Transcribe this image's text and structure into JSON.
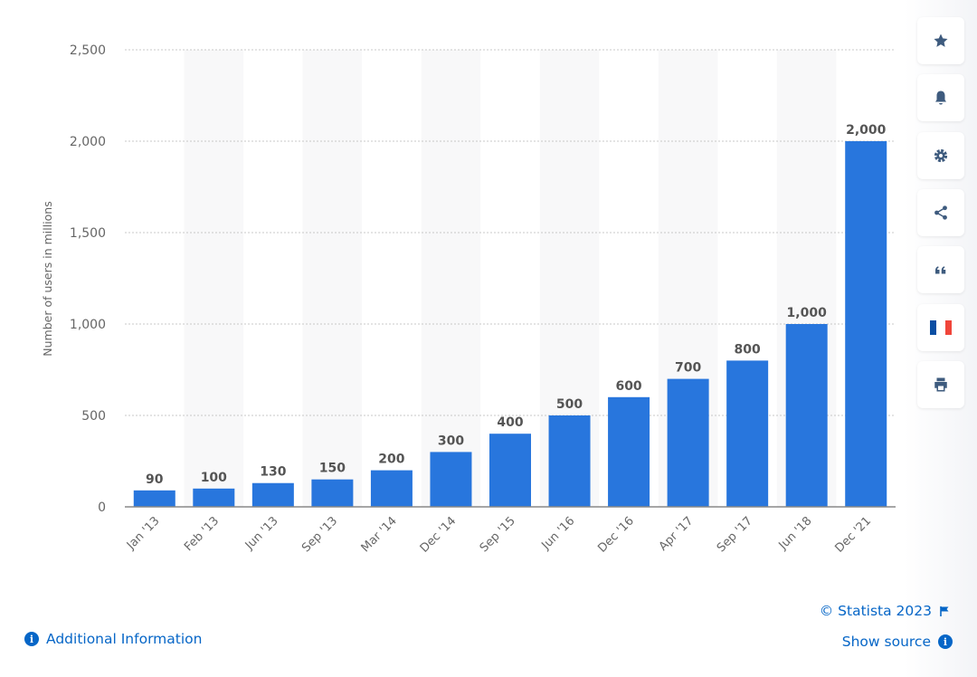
{
  "chart_data": {
    "type": "bar",
    "ylabel": "Number of users in millions",
    "xlabel": "",
    "ylim": [
      0,
      2500
    ],
    "yticks": [
      0,
      500,
      1000,
      1500,
      2000,
      2500
    ],
    "ytick_labels": [
      "0",
      "500",
      "1,000",
      "1,500",
      "2,000",
      "2,500"
    ],
    "grid": true,
    "bar_color": "#2876dd",
    "categories": [
      "Jan '13",
      "Feb '13",
      "Jun '13",
      "Sep '13",
      "Mar '14",
      "Dec '14",
      "Sep '15",
      "Jun '16",
      "Dec '16",
      "Apr '17",
      "Sep '17",
      "Jun '18",
      "Dec '21"
    ],
    "values": [
      90,
      100,
      130,
      150,
      200,
      300,
      400,
      500,
      600,
      700,
      800,
      1000,
      2000
    ],
    "value_labels": [
      "90",
      "100",
      "130",
      "150",
      "200",
      "300",
      "400",
      "500",
      "600",
      "700",
      "800",
      "1,000",
      "2,000"
    ]
  },
  "toolbar": [
    {
      "icon": "star-icon",
      "label": "favorite"
    },
    {
      "icon": "bell-icon",
      "label": "notifications"
    },
    {
      "icon": "gear-icon",
      "label": "settings"
    },
    {
      "icon": "share-icon",
      "label": "share"
    },
    {
      "icon": "quote-icon",
      "label": "cite"
    },
    {
      "icon": "french-flag-icon",
      "label": "language"
    },
    {
      "icon": "print-icon",
      "label": "print"
    }
  ],
  "footer": {
    "additional_info": "Additional Information",
    "copyright": "© Statista 2023",
    "show_source": "Show source"
  },
  "colors": {
    "accent": "#0666c7",
    "bar": "#2876dd",
    "icon": "#3e5b7e"
  }
}
